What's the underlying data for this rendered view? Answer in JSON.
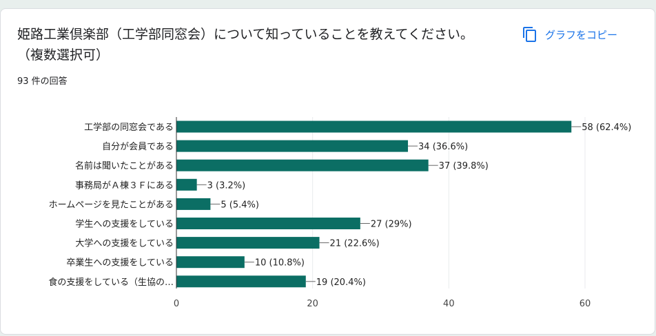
{
  "question": {
    "title": "姫路工業倶楽部（工学部同窓会）について知っていることを教えてください。（複数選択可）",
    "response_count": "93 件の回答"
  },
  "copy_button": {
    "label": "グラフをコピー",
    "icon": "copy-icon"
  },
  "colors": {
    "bar": "#0b6e64",
    "link": "#1a73e8",
    "grid": "#e8eaed",
    "axis": "#333333"
  },
  "chart_data": {
    "type": "bar",
    "orientation": "horizontal",
    "categories": [
      "工学部の同窓会である",
      "自分が会員である",
      "名前は聞いたことがある",
      "事務局がＡ棟３Ｆにある",
      "ホームページを見たことがある",
      "学生への支援をしている",
      "大学への支援をしている",
      "卒業生への支援をしている",
      "食の支援をしている（生協の…"
    ],
    "values": [
      58,
      34,
      37,
      3,
      5,
      27,
      21,
      10,
      19
    ],
    "data_labels": [
      "58 (62.4%)",
      "34 (36.6%)",
      "37 (39.8%)",
      "3 (3.2%)",
      "5 (5.4%)",
      "27 (29%)",
      "21 (22.6%)",
      "10 (10.8%)",
      "19 (20.4%)"
    ],
    "xticks": [
      "0",
      "20",
      "40",
      "60"
    ],
    "xlim": [
      0,
      60
    ],
    "grid": true,
    "title": "",
    "xlabel": "",
    "ylabel": ""
  }
}
